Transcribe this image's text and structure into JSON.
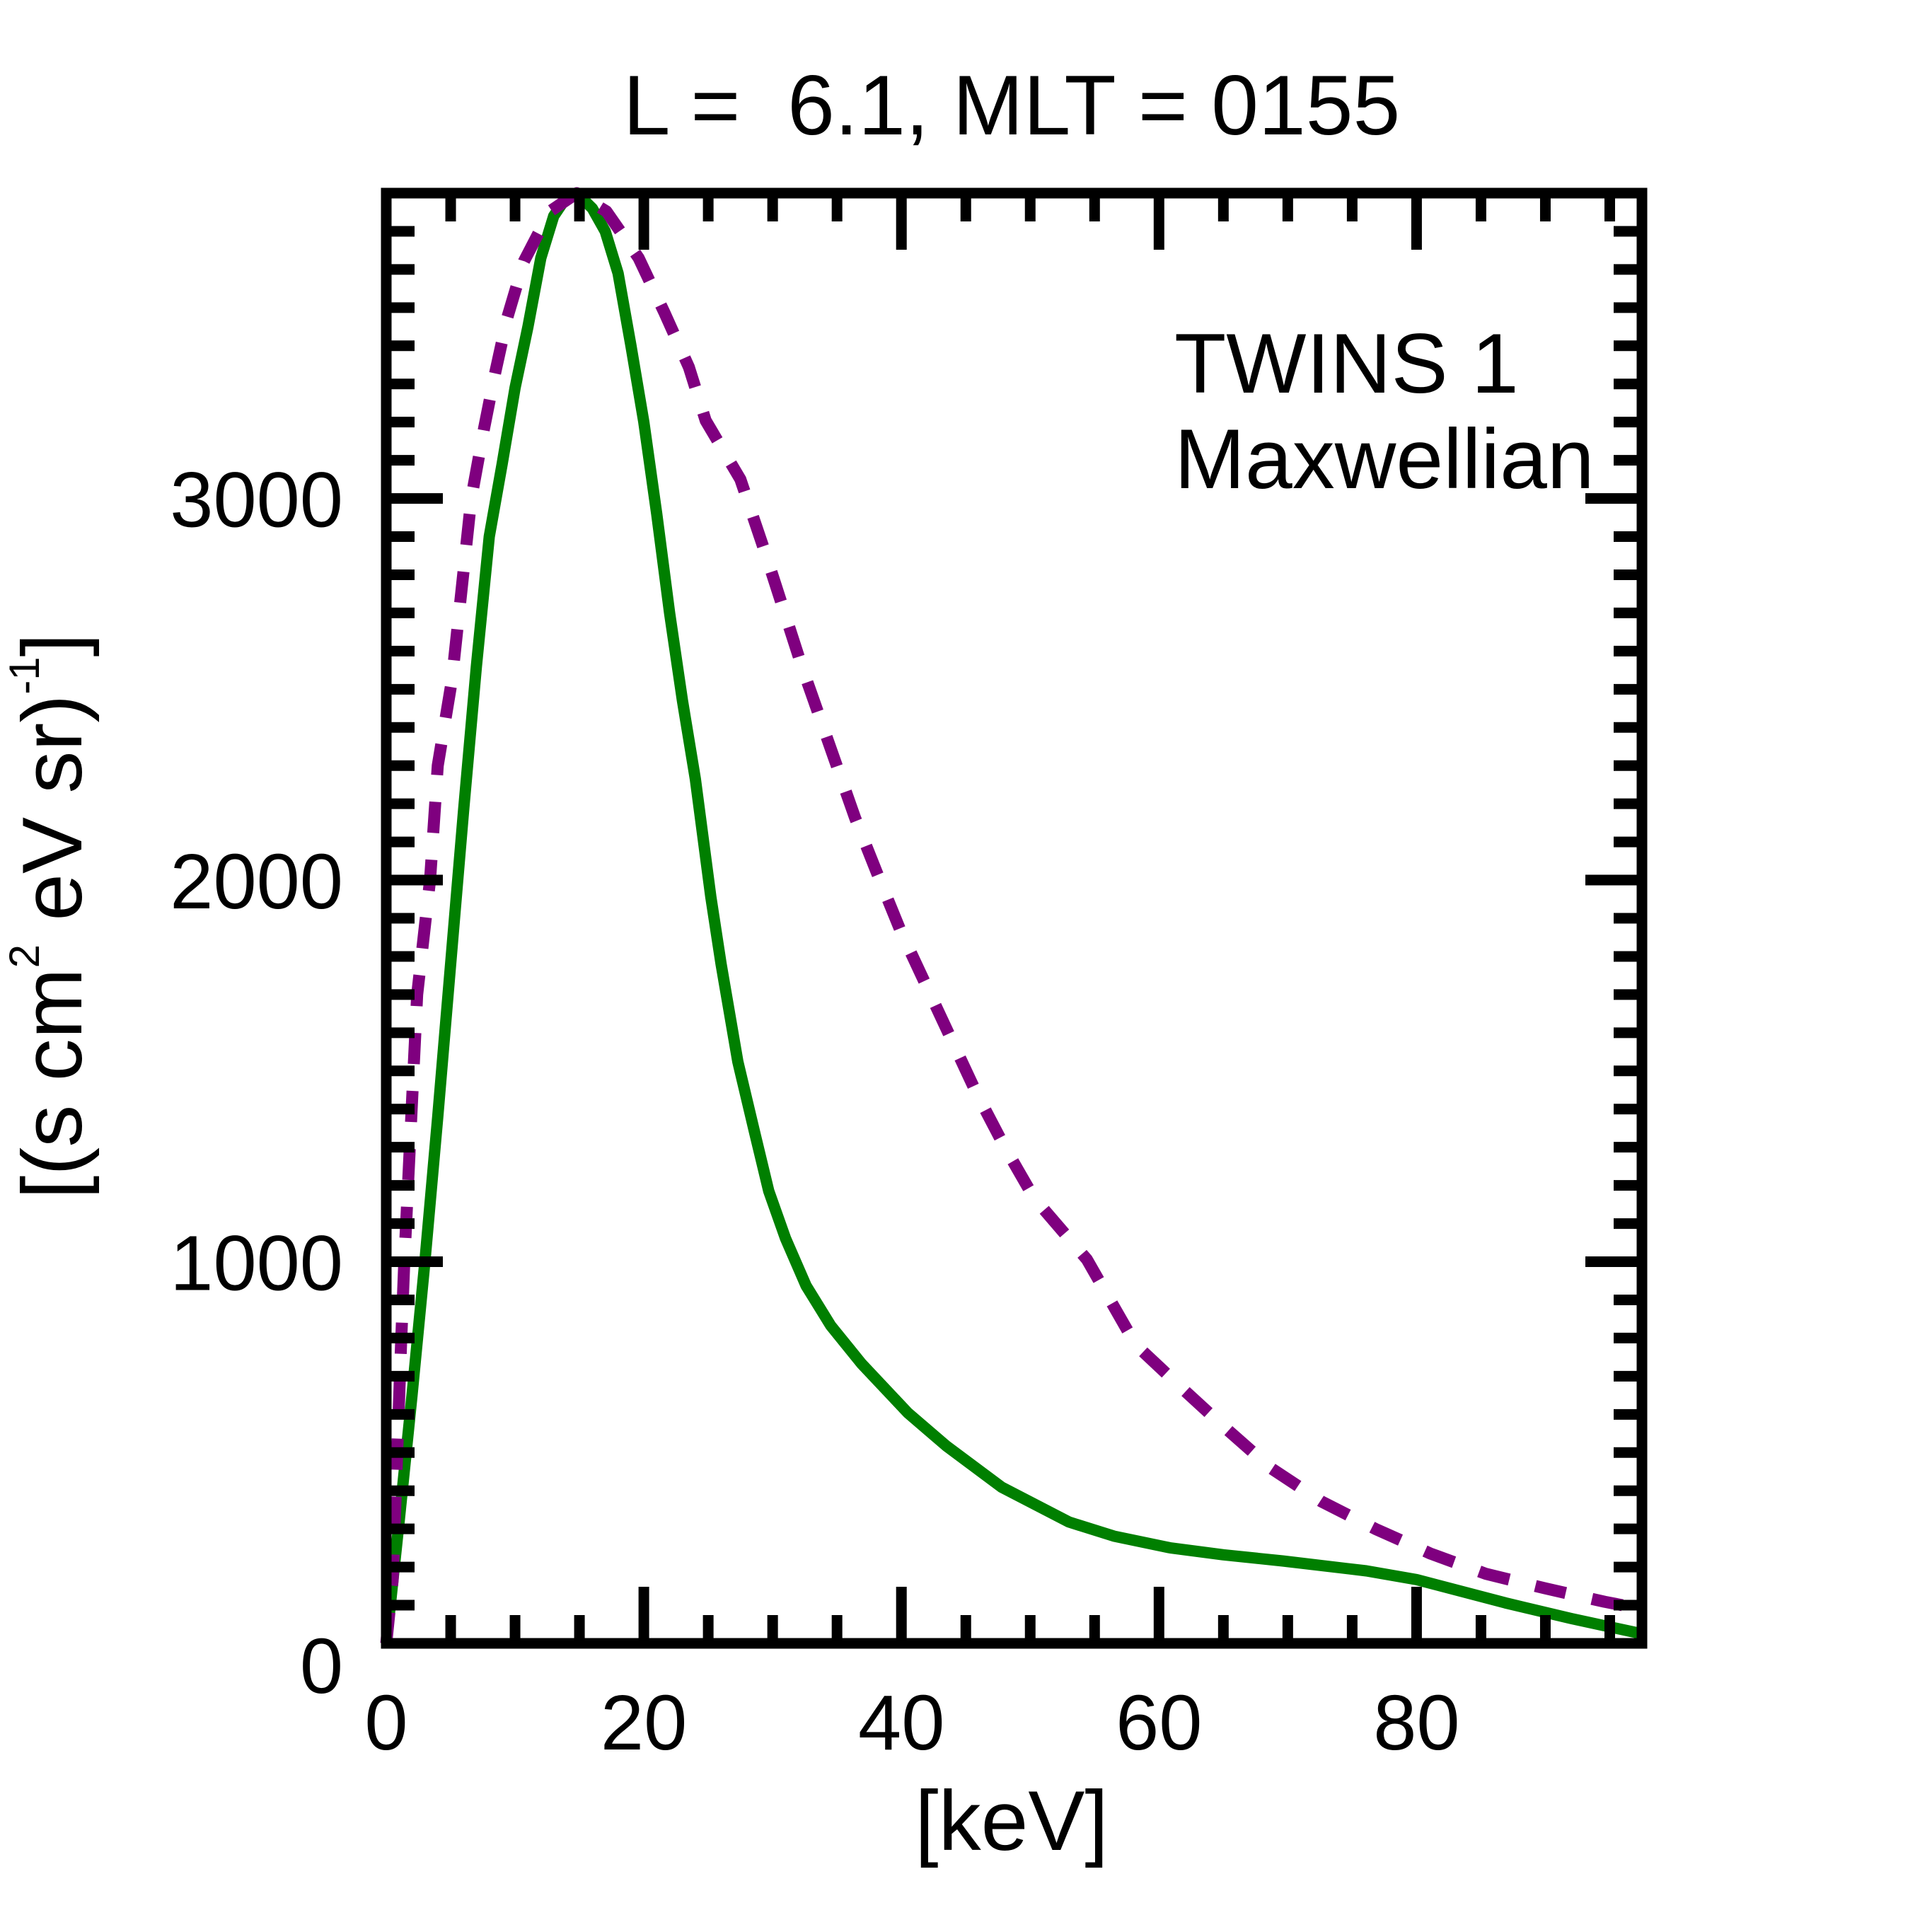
{
  "chart_data": {
    "type": "line",
    "title": "L =  6.1, MLT = 0155",
    "xlabel": "[keV]",
    "ylabel": {
      "base": "[(s cm",
      "sup1": "2",
      "mid": " eV sr)",
      "sup2": "-1",
      "end": "]"
    },
    "xlim": [
      0,
      97.5
    ],
    "ylim": [
      0,
      3800
    ],
    "x_major_ticks": [
      0,
      20,
      40,
      60,
      80
    ],
    "x_tick_labels": [
      "0",
      "20",
      "40",
      "60",
      "80"
    ],
    "x_minor_step": 5,
    "y_major_ticks": [
      0,
      1000,
      2000,
      3000
    ],
    "y_tick_labels": [
      "0",
      "1000",
      "2000",
      "3000"
    ],
    "y_minor_step": 100,
    "grid": false,
    "legend_position": "top-right",
    "series": [
      {
        "name": "TWINS 1",
        "color": "#007f00",
        "style": "solid",
        "x": [
          0,
          1,
          2,
          3,
          4,
          5,
          6,
          7,
          8,
          9,
          10,
          11,
          12,
          13,
          14,
          14.8,
          16,
          17,
          18,
          19,
          20,
          21,
          22,
          23,
          24,
          25.2,
          26,
          27.3,
          28.6,
          29.7,
          31,
          32.6,
          34.5,
          36.9,
          40.5,
          43.5,
          47.8,
          53,
          56.5,
          60.9,
          65,
          69.6,
          76.1,
          80,
          86.9,
          92,
          97.5
        ],
        "y": [
          0,
          320,
          650,
          1000,
          1380,
          1780,
          2180,
          2560,
          2900,
          3090,
          3290,
          3450,
          3630,
          3740,
          3790,
          3800,
          3760,
          3700,
          3590,
          3400,
          3200,
          2960,
          2700,
          2470,
          2265,
          1956,
          1780,
          1524,
          1339,
          1185,
          1061,
          937,
          833,
          733,
          604,
          517,
          409,
          318,
          281,
          250,
          232,
          216,
          190,
          167,
          106,
          65,
          25
        ]
      },
      {
        "name": "Maxwellian",
        "color": "#7f007f",
        "style": "dashed",
        "x": [
          0,
          0.5,
          1.15,
          1.4,
          2.4,
          3.4,
          4,
          5.1,
          6.6,
          7.6,
          8.4,
          9.4,
          10.7,
          12.7,
          14.8,
          17.1,
          19.6,
          21.6,
          23.5,
          24.8,
          27.5,
          29.5,
          32.3,
          36.4,
          38.1,
          39.9,
          45.8,
          48,
          50.3,
          54.4,
          58.2,
          61.8,
          65,
          68.7,
          72.6,
          76.8,
          81.1,
          85.4,
          90,
          94.6,
          97.5
        ],
        "y": [
          0,
          167,
          783,
          1000,
          1700,
          2000,
          2300,
          2524,
          3000,
          3185,
          3320,
          3474,
          3622,
          3752,
          3800,
          3752,
          3630,
          3487,
          3344,
          3204,
          3050,
          2850,
          2557,
          2163,
          2019,
          1870,
          1444,
          1302,
          1167,
          1006,
          782,
          668,
          569,
          459,
          372,
          300,
          235,
          182,
          144,
          109,
          90
        ]
      }
    ]
  }
}
